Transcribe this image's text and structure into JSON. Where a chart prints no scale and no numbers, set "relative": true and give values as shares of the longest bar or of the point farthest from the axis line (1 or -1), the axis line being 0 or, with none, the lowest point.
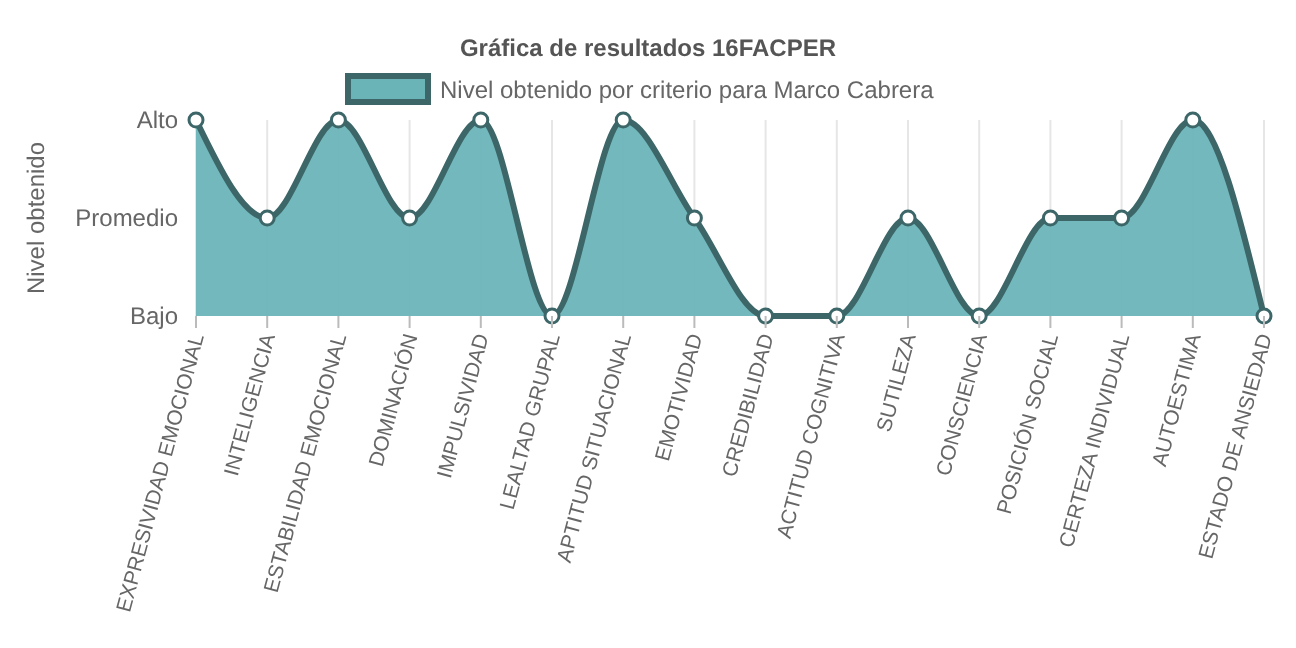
{
  "chart_data": {
    "type": "area",
    "title": "Gráfica de resultados 16FACPER",
    "ylabel": "Nivel obtenido",
    "categories": [
      "EXPRESIVIDAD EMOCIONAL",
      "INTELIGENCIA",
      "ESTABILIDAD EMOCIONAL",
      "DOMINACIÓN",
      "IMPULSIVIDAD",
      "LEALTAD GRUPAL",
      "APTITUD SITUACIONAL",
      "EMOTIVIDAD",
      "CREDIBILIDAD",
      "ACTITUD COGNITIVA",
      "SUTILEZA",
      "CONSCIENCIA",
      "POSICIÓN SOCIAL",
      "CERTEZA INDIVIDUAL",
      "AUTOESTIMA",
      "ESTADO DE ANSIEDAD"
    ],
    "series": [
      {
        "name": "Nivel obtenido por criterio para Marco Cabrera",
        "color": "#6ab4b8",
        "values": [
          1,
          0.5,
          1,
          0.5,
          1,
          0,
          1,
          0.5,
          0,
          0,
          0.5,
          0,
          0.5,
          0.5,
          1,
          0
        ]
      }
    ],
    "relative": true,
    "annotations": [
      "Bajo",
      "Promedio",
      "Alto"
    ],
    "grid": "x",
    "legend": "top",
    "marker": "circle",
    "line_style": "solid"
  }
}
